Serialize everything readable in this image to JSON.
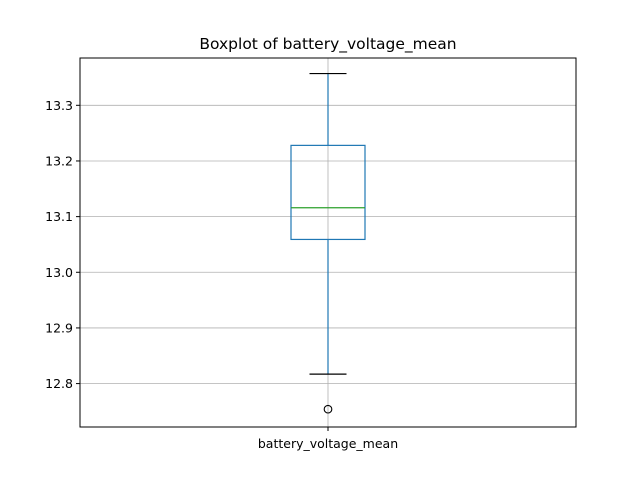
{
  "chart_data": {
    "type": "boxplot",
    "title": "Boxplot of battery_voltage_mean",
    "categories": [
      "battery_voltage_mean"
    ],
    "ylim": [
      12.722,
      13.385
    ],
    "y_ticks": [
      "12.8",
      "12.9",
      "13.0",
      "13.1",
      "13.2",
      "13.3"
    ],
    "grid": true,
    "boxes": [
      {
        "name": "battery_voltage_mean",
        "whisker_low": 12.817,
        "q1": 13.059,
        "median": 13.116,
        "q3": 13.228,
        "whisker_high": 13.357,
        "outliers": [
          12.754
        ]
      }
    ],
    "colors": {
      "box": "#1f77b4",
      "median": "#2ca02c",
      "caps": "#000000",
      "grid": "#b0b0b0"
    }
  }
}
